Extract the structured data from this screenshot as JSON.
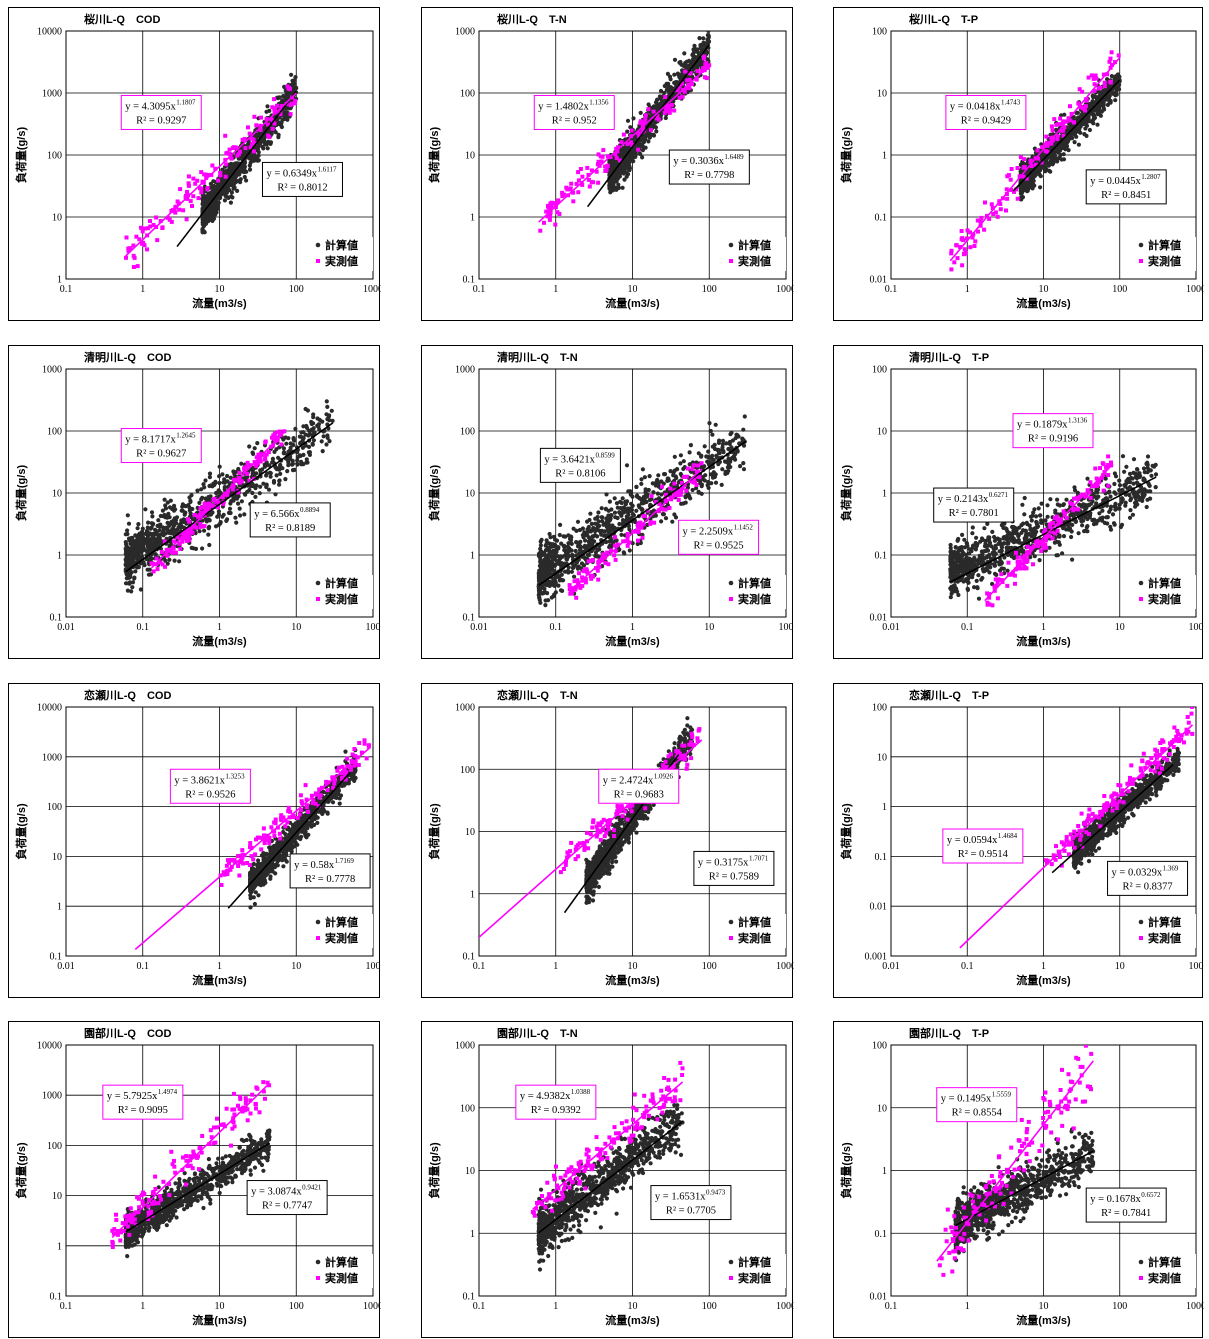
{
  "colors": {
    "computed": "#2a2a2a",
    "measured": "#ff00ff",
    "fit_computed": "#000000",
    "fit_measured": "#ff00ff"
  },
  "chart_data": [
    {
      "type": "scatter",
      "title": "桜川L-Q　COD",
      "xlabel": "流量(m3/s)",
      "ylabel": "負荷量(g/s)",
      "xlim": [
        0.1,
        1000
      ],
      "ylim": [
        1,
        10000
      ],
      "xticks": [
        "0.1",
        "1",
        "10",
        "100",
        "1000"
      ],
      "yticks": [
        "1",
        "10",
        "100",
        "1000",
        "10000"
      ],
      "xscale": "log",
      "yscale": "log",
      "grid": true,
      "legend_position": "bottom-right",
      "series": [
        {
          "name": "計算値",
          "fit": {
            "a": 0.6349,
            "b": 1.6117,
            "r2": 0.8012,
            "label": "y = 0.6349x",
            "exp": "1.6117",
            "r2_label": "R² = 0.8012"
          },
          "x_range": [
            2.8,
            100
          ],
          "cloud": {
            "x": [
              6,
              100
            ],
            "spread": 0.14
          }
        },
        {
          "name": "実測値",
          "fit": {
            "a": 4.3095,
            "b": 1.1807,
            "r2": 0.9297,
            "label": "y = 4.3095x",
            "exp": "1.1807",
            "r2_label": "R² = 0.9297"
          },
          "x_range": [
            0.6,
            100
          ],
          "cloud": {
            "x": [
              0.6,
              100
            ],
            "spread": 0.15
          }
        }
      ]
    },
    {
      "type": "scatter",
      "title": "桜川L-Q　T-N",
      "xlabel": "流量(m3/s)",
      "ylabel": "負荷量(g/s)",
      "xlim": [
        0.1,
        1000
      ],
      "ylim": [
        0.1,
        1000
      ],
      "xticks": [
        "0.1",
        "1",
        "10",
        "100",
        "1000"
      ],
      "yticks": [
        "0.1",
        "1",
        "10",
        "100",
        "1000"
      ],
      "xscale": "log",
      "yscale": "log",
      "grid": true,
      "legend_position": "bottom-right",
      "series": [
        {
          "name": "計算値",
          "fit": {
            "a": 0.3036,
            "b": 1.6489,
            "r2": 0.7798,
            "label": "y = 0.3036x",
            "exp": "1.6489",
            "r2_label": "R² = 0.7798"
          },
          "x_range": [
            2.6,
            100
          ],
          "cloud": {
            "x": [
              5,
              100
            ],
            "spread": 0.14
          }
        },
        {
          "name": "実測値",
          "fit": {
            "a": 1.4802,
            "b": 1.1356,
            "r2": 0.952,
            "label": "y = 1.4802x",
            "exp": "1.1356",
            "r2_label": "R² = 0.952"
          },
          "x_range": [
            0.6,
            100
          ],
          "cloud": {
            "x": [
              0.6,
              100
            ],
            "spread": 0.12
          }
        }
      ]
    },
    {
      "type": "scatter",
      "title": "桜川L-Q　T-P",
      "xlabel": "流量(m3/s)",
      "ylabel": "負荷量(g/s)",
      "xlim": [
        0.1,
        1000
      ],
      "ylim": [
        0.01,
        100
      ],
      "xticks": [
        "0.1",
        "1",
        "10",
        "100",
        "1000"
      ],
      "yticks": [
        "0.01",
        "0.1",
        "1",
        "10",
        "100"
      ],
      "xscale": "log",
      "yscale": "log",
      "grid": true,
      "legend_position": "bottom-right",
      "series": [
        {
          "name": "計算値",
          "fit": {
            "a": 0.0445,
            "b": 1.2807,
            "r2": 0.8451,
            "label": "y = 0.0445x",
            "exp": "1.2807",
            "r2_label": "R² = 0.8451"
          },
          "x_range": [
            4,
            100
          ],
          "cloud": {
            "x": [
              5,
              100
            ],
            "spread": 0.12
          }
        },
        {
          "name": "実測値",
          "fit": {
            "a": 0.0418,
            "b": 1.4743,
            "r2": 0.9429,
            "label": "y = 0.0418x",
            "exp": "1.4743",
            "r2_label": "R² = 0.9429"
          },
          "x_range": [
            0.6,
            100
          ],
          "cloud": {
            "x": [
              0.6,
              100
            ],
            "spread": 0.13
          }
        }
      ]
    },
    {
      "type": "scatter",
      "title": "清明川L-Q　COD",
      "xlabel": "流量(m3/s)",
      "ylabel": "負荷量(g/s)",
      "xlim": [
        0.01,
        100
      ],
      "ylim": [
        0.1,
        1000
      ],
      "xticks": [
        "0.01",
        "0.1",
        "1",
        "10",
        "100"
      ],
      "yticks": [
        "0.1",
        "1",
        "10",
        "100",
        "1000"
      ],
      "xscale": "log",
      "yscale": "log",
      "grid": true,
      "legend_position": "bottom-right",
      "series": [
        {
          "name": "計算値",
          "fit": {
            "a": 6.566,
            "b": 0.8894,
            "r2": 0.8189,
            "label": "y = 6.566x",
            "exp": "0.8894",
            "r2_label": "R² = 0.8189"
          },
          "x_range": [
            0.06,
            30
          ],
          "cloud": {
            "x": [
              0.06,
              30
            ],
            "spread": 0.22,
            "bias": 0.15
          }
        },
        {
          "name": "実測値",
          "fit": {
            "a": 8.1717,
            "b": 1.2645,
            "r2": 0.9627,
            "label": "y = 8.1717x",
            "exp": "1.2645",
            "r2_label": "R² = 0.9627"
          },
          "x_range": [
            0.13,
            7
          ],
          "cloud": {
            "x": [
              0.13,
              7
            ],
            "spread": 0.1
          }
        }
      ]
    },
    {
      "type": "scatter",
      "title": "清明川L-Q　T-N",
      "xlabel": "流量(m3/s)",
      "ylabel": "負荷量(g/s)",
      "xlim": [
        0.01,
        100
      ],
      "ylim": [
        0.1,
        1000
      ],
      "xticks": [
        "0.01",
        "0.1",
        "1",
        "10",
        "100"
      ],
      "yticks": [
        "0.1",
        "1",
        "10",
        "100",
        "1000"
      ],
      "xscale": "log",
      "yscale": "log",
      "grid": true,
      "legend_position": "bottom-right",
      "series": [
        {
          "name": "計算値",
          "fit": {
            "a": 3.6421,
            "b": 0.8599,
            "r2": 0.8106,
            "label": "y = 3.6421x",
            "exp": "0.8599",
            "r2_label": "R² = 0.8106"
          },
          "x_range": [
            0.06,
            30
          ],
          "cloud": {
            "x": [
              0.06,
              30
            ],
            "spread": 0.22,
            "bias": 0.15
          }
        },
        {
          "name": "実測値",
          "fit": {
            "a": 2.2509,
            "b": 1.1452,
            "r2": 0.9525,
            "label": "y = 2.2509x",
            "exp": "1.1452",
            "r2_label": "R² = 0.9525"
          },
          "x_range": [
            0.15,
            8
          ],
          "cloud": {
            "x": [
              0.15,
              8
            ],
            "spread": 0.1
          }
        }
      ]
    },
    {
      "type": "scatter",
      "title": "清明川L-Q　T-P",
      "xlabel": "流量(m3/s)",
      "ylabel": "負荷量(g/s)",
      "xlim": [
        0.01,
        100
      ],
      "ylim": [
        0.01,
        100
      ],
      "xticks": [
        "0.01",
        "0.1",
        "1",
        "10",
        "100"
      ],
      "yticks": [
        "0.01",
        "0.1",
        "1",
        "10",
        "100"
      ],
      "xscale": "log",
      "yscale": "log",
      "grid": true,
      "legend_position": "bottom-right",
      "series": [
        {
          "name": "計算値",
          "fit": {
            "a": 0.2143,
            "b": 0.6271,
            "r2": 0.7801,
            "label": "y = 0.2143x",
            "exp": "0.6271",
            "r2_label": "R² = 0.7801"
          },
          "x_range": [
            0.06,
            30
          ],
          "cloud": {
            "x": [
              0.06,
              30
            ],
            "spread": 0.2,
            "bias": 0.15
          }
        },
        {
          "name": "実測値",
          "fit": {
            "a": 0.1879,
            "b": 1.3136,
            "r2": 0.9196,
            "label": "y = 0.1879x",
            "exp": "1.3136",
            "r2_label": "R² = 0.9196"
          },
          "x_range": [
            0.17,
            8
          ],
          "cloud": {
            "x": [
              0.17,
              8
            ],
            "spread": 0.1
          }
        }
      ]
    },
    {
      "type": "scatter",
      "title": "恋瀬川L-Q　COD",
      "xlabel": "流量(m3/s)",
      "ylabel": "負荷量(g/s)",
      "xlim": [
        0.01,
        100
      ],
      "ylim": [
        0.1,
        10000
      ],
      "xticks": [
        "0.01",
        "0.1",
        "1",
        "10",
        "100"
      ],
      "yticks": [
        "0.1",
        "1",
        "10",
        "100",
        "1000",
        "10000"
      ],
      "xscale": "log",
      "yscale": "log",
      "grid": true,
      "legend_position": "bottom-right",
      "series": [
        {
          "name": "計算値",
          "fit": {
            "a": 0.58,
            "b": 1.7169,
            "r2": 0.7778,
            "label": "y = 0.58x",
            "exp": "1.7169",
            "r2_label": "R² = 0.7778"
          },
          "x_range": [
            1.3,
            50
          ],
          "cloud": {
            "x": [
              2.5,
              60
            ],
            "spread": 0.14
          }
        },
        {
          "name": "実測値",
          "fit": {
            "a": 3.8621,
            "b": 1.3253,
            "r2": 0.9526,
            "label": "y = 3.8621x",
            "exp": "1.3253",
            "r2_label": "R² = 0.9526"
          },
          "x_range": [
            0.08,
            90
          ],
          "cloud": {
            "x": [
              1,
              90
            ],
            "spread": 0.13
          }
        }
      ]
    },
    {
      "type": "scatter",
      "title": "恋瀬川L-Q　T-N",
      "xlabel": "流量(m3/s)",
      "ylabel": "負荷量(g/s)",
      "xlim": [
        0.1,
        1000
      ],
      "ylim": [
        0.1,
        1000
      ],
      "xticks": [
        "0.1",
        "1",
        "10",
        "100",
        "1000"
      ],
      "yticks": [
        "0.1",
        "1",
        "10",
        "100",
        "1000"
      ],
      "xscale": "log",
      "yscale": "log",
      "grid": true,
      "legend_position": "bottom-right",
      "series": [
        {
          "name": "計算値",
          "fit": {
            "a": 0.3175,
            "b": 1.7071,
            "r2": 0.7589,
            "label": "y = 0.3175x",
            "exp": "1.7071",
            "r2_label": "R² = 0.7589"
          },
          "x_range": [
            1.3,
            40
          ],
          "cloud": {
            "x": [
              2.5,
              60
            ],
            "spread": 0.14
          }
        },
        {
          "name": "実測値",
          "fit": {
            "a": 2.4724,
            "b": 1.0926,
            "r2": 0.9683,
            "label": "y = 2.4724x",
            "exp": "1.0926",
            "r2_label": "R² = 0.9683"
          },
          "x_range": [
            0.08,
            80
          ],
          "cloud": {
            "x": [
              1,
              80
            ],
            "spread": 0.12
          }
        }
      ]
    },
    {
      "type": "scatter",
      "title": "恋瀬川L-Q　T-P",
      "xlabel": "流量(m3/s)",
      "ylabel": "負荷量(g/s)",
      "xlim": [
        0.01,
        100
      ],
      "ylim": [
        0.001,
        100
      ],
      "xticks": [
        "0.01",
        "0.1",
        "1",
        "10",
        "100"
      ],
      "yticks": [
        "0.001",
        "0.01",
        "0.1",
        "1",
        "10",
        "100"
      ],
      "xscale": "log",
      "yscale": "log",
      "grid": true,
      "legend_position": "bottom-right",
      "series": [
        {
          "name": "計算値",
          "fit": {
            "a": 0.0329,
            "b": 1.369,
            "r2": 0.8377,
            "label": "y = 0.0329x",
            "exp": "1.369",
            "r2_label": "R² = 0.8377"
          },
          "x_range": [
            1.3,
            50
          ],
          "cloud": {
            "x": [
              2.5,
              60
            ],
            "spread": 0.14
          }
        },
        {
          "name": "実測値",
          "fit": {
            "a": 0.0594,
            "b": 1.4684,
            "r2": 0.9514,
            "label": "y = 0.0594x",
            "exp": "1.4684",
            "r2_label": "R² = 0.9514"
          },
          "x_range": [
            0.08,
            90
          ],
          "cloud": {
            "x": [
              1,
              90
            ],
            "spread": 0.14
          }
        }
      ]
    },
    {
      "type": "scatter",
      "title": "園部川L-Q　COD",
      "xlabel": "流量(m3/s)",
      "ylabel": "負荷量(g/s)",
      "xlim": [
        0.1,
        1000
      ],
      "ylim": [
        0.1,
        10000
      ],
      "xticks": [
        "0.1",
        "1",
        "10",
        "100",
        "1000"
      ],
      "yticks": [
        "0.1",
        "1",
        "10",
        "100",
        "1000",
        "10000"
      ],
      "xscale": "log",
      "yscale": "log",
      "grid": true,
      "legend_position": "bottom-right",
      "series": [
        {
          "name": "計算値",
          "fit": {
            "a": 3.0874,
            "b": 0.9421,
            "r2": 0.7747,
            "label": "y = 3.0874x",
            "exp": "0.9421",
            "r2_label": "R² = 0.7747"
          },
          "x_range": [
            0.6,
            45
          ],
          "cloud": {
            "x": [
              0.6,
              45
            ],
            "spread": 0.16
          }
        },
        {
          "name": "実測値",
          "fit": {
            "a": 5.7925,
            "b": 1.4974,
            "r2": 0.9095,
            "label": "y = 5.7925x",
            "exp": "1.4974",
            "r2_label": "R² = 0.9095"
          },
          "x_range": [
            0.4,
            45
          ],
          "cloud": {
            "x": [
              0.4,
              45
            ],
            "spread": 0.18
          }
        }
      ]
    },
    {
      "type": "scatter",
      "title": "園部川L-Q　T-N",
      "xlabel": "流量(m3/s)",
      "ylabel": "負荷量(g/s)",
      "xlim": [
        0.1,
        1000
      ],
      "ylim": [
        0.1,
        1000
      ],
      "xticks": [
        "0.1",
        "1",
        "10",
        "100",
        "1000"
      ],
      "yticks": [
        "0.1",
        "1",
        "10",
        "100",
        "1000"
      ],
      "xscale": "log",
      "yscale": "log",
      "grid": true,
      "legend_position": "bottom-right",
      "series": [
        {
          "name": "計算値",
          "fit": {
            "a": 1.6531,
            "b": 0.9473,
            "r2": 0.7705,
            "label": "y = 1.6531x",
            "exp": "0.9473",
            "r2_label": "R² = 0.7705"
          },
          "x_range": [
            0.6,
            45
          ],
          "cloud": {
            "x": [
              0.6,
              45
            ],
            "spread": 0.2
          }
        },
        {
          "name": "実測値",
          "fit": {
            "a": 4.9382,
            "b": 1.0388,
            "r2": 0.9392,
            "label": "y = 4.9382x",
            "exp": "1.0388",
            "r2_label": "R² = 0.9392"
          },
          "x_range": [
            0.5,
            45
          ],
          "cloud": {
            "x": [
              0.5,
              45
            ],
            "spread": 0.15
          }
        }
      ]
    },
    {
      "type": "scatter",
      "title": "園部川L-Q　T-P",
      "xlabel": "流量(m3/s)",
      "ylabel": "負荷量(g/s)",
      "xlim": [
        0.1,
        1000
      ],
      "ylim": [
        0.01,
        100
      ],
      "xticks": [
        "0.1",
        "1",
        "10",
        "100",
        "1000"
      ],
      "yticks": [
        "0.01",
        "0.1",
        "1",
        "10",
        "100"
      ],
      "xscale": "log",
      "yscale": "log",
      "grid": true,
      "legend_position": "bottom-right",
      "series": [
        {
          "name": "計算値",
          "fit": {
            "a": 0.1678,
            "b": 0.6572,
            "r2": 0.7841,
            "label": "y = 0.1678x",
            "exp": "0.6572",
            "r2_label": "R² = 0.7841"
          },
          "x_range": [
            0.7,
            45
          ],
          "cloud": {
            "x": [
              0.7,
              45
            ],
            "spread": 0.2
          }
        },
        {
          "name": "実測値",
          "fit": {
            "a": 0.1495,
            "b": 1.5559,
            "r2": 0.8554,
            "label": "y = 0.1495x",
            "exp": "1.5559",
            "r2_label": "R² = 0.8554"
          },
          "x_range": [
            0.4,
            45
          ],
          "cloud": {
            "x": [
              0.4,
              45
            ],
            "spread": 0.25
          }
        }
      ]
    }
  ]
}
